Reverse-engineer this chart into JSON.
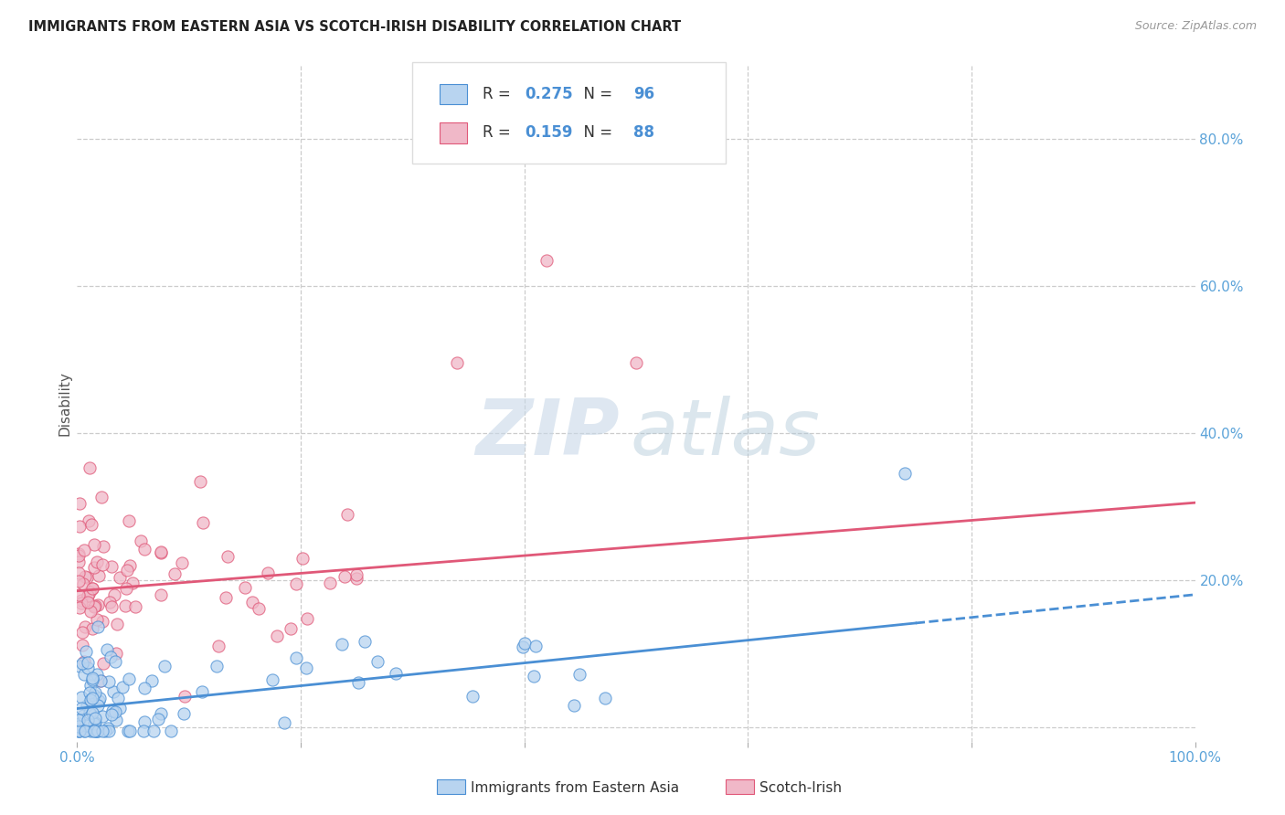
{
  "title": "IMMIGRANTS FROM EASTERN ASIA VS SCOTCH-IRISH DISABILITY CORRELATION CHART",
  "source": "Source: ZipAtlas.com",
  "ylabel": "Disability",
  "r_blue": 0.275,
  "n_blue": 96,
  "r_pink": 0.159,
  "n_pink": 88,
  "blue_fill": "#b8d4f0",
  "pink_fill": "#f0b8c8",
  "blue_edge": "#4a8fd4",
  "pink_edge": "#e05878",
  "axis_label_color": "#5ba3d9",
  "title_color": "#222222",
  "source_color": "#999999",
  "grid_color": "#cccccc",
  "legend_label_blue": "Immigrants from Eastern Asia",
  "legend_label_pink": "Scotch-Irish",
  "xlim": [
    0.0,
    1.0
  ],
  "ylim": [
    -0.02,
    0.9
  ],
  "background": "#ffffff",
  "blue_line_intercept": 0.025,
  "blue_line_slope": 0.155,
  "pink_line_intercept": 0.185,
  "pink_line_slope": 0.12
}
